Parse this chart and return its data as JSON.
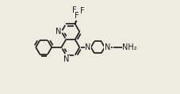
{
  "bg_color": "#f0ebe0",
  "bond_color": "#1a1a1a",
  "lw": 1.2,
  "fs": 7.0,
  "fs_cf3": 6.5,
  "fs_nh2": 7.0,
  "TR": 0.5,
  "BL": 0.5,
  "pip_R": 0.38,
  "ph_R": 0.44,
  "xlim": [
    0,
    10
  ],
  "ylim": [
    0,
    5.2
  ],
  "TCx": 4.05,
  "TCy": 3.55,
  "double_off": 0.055
}
